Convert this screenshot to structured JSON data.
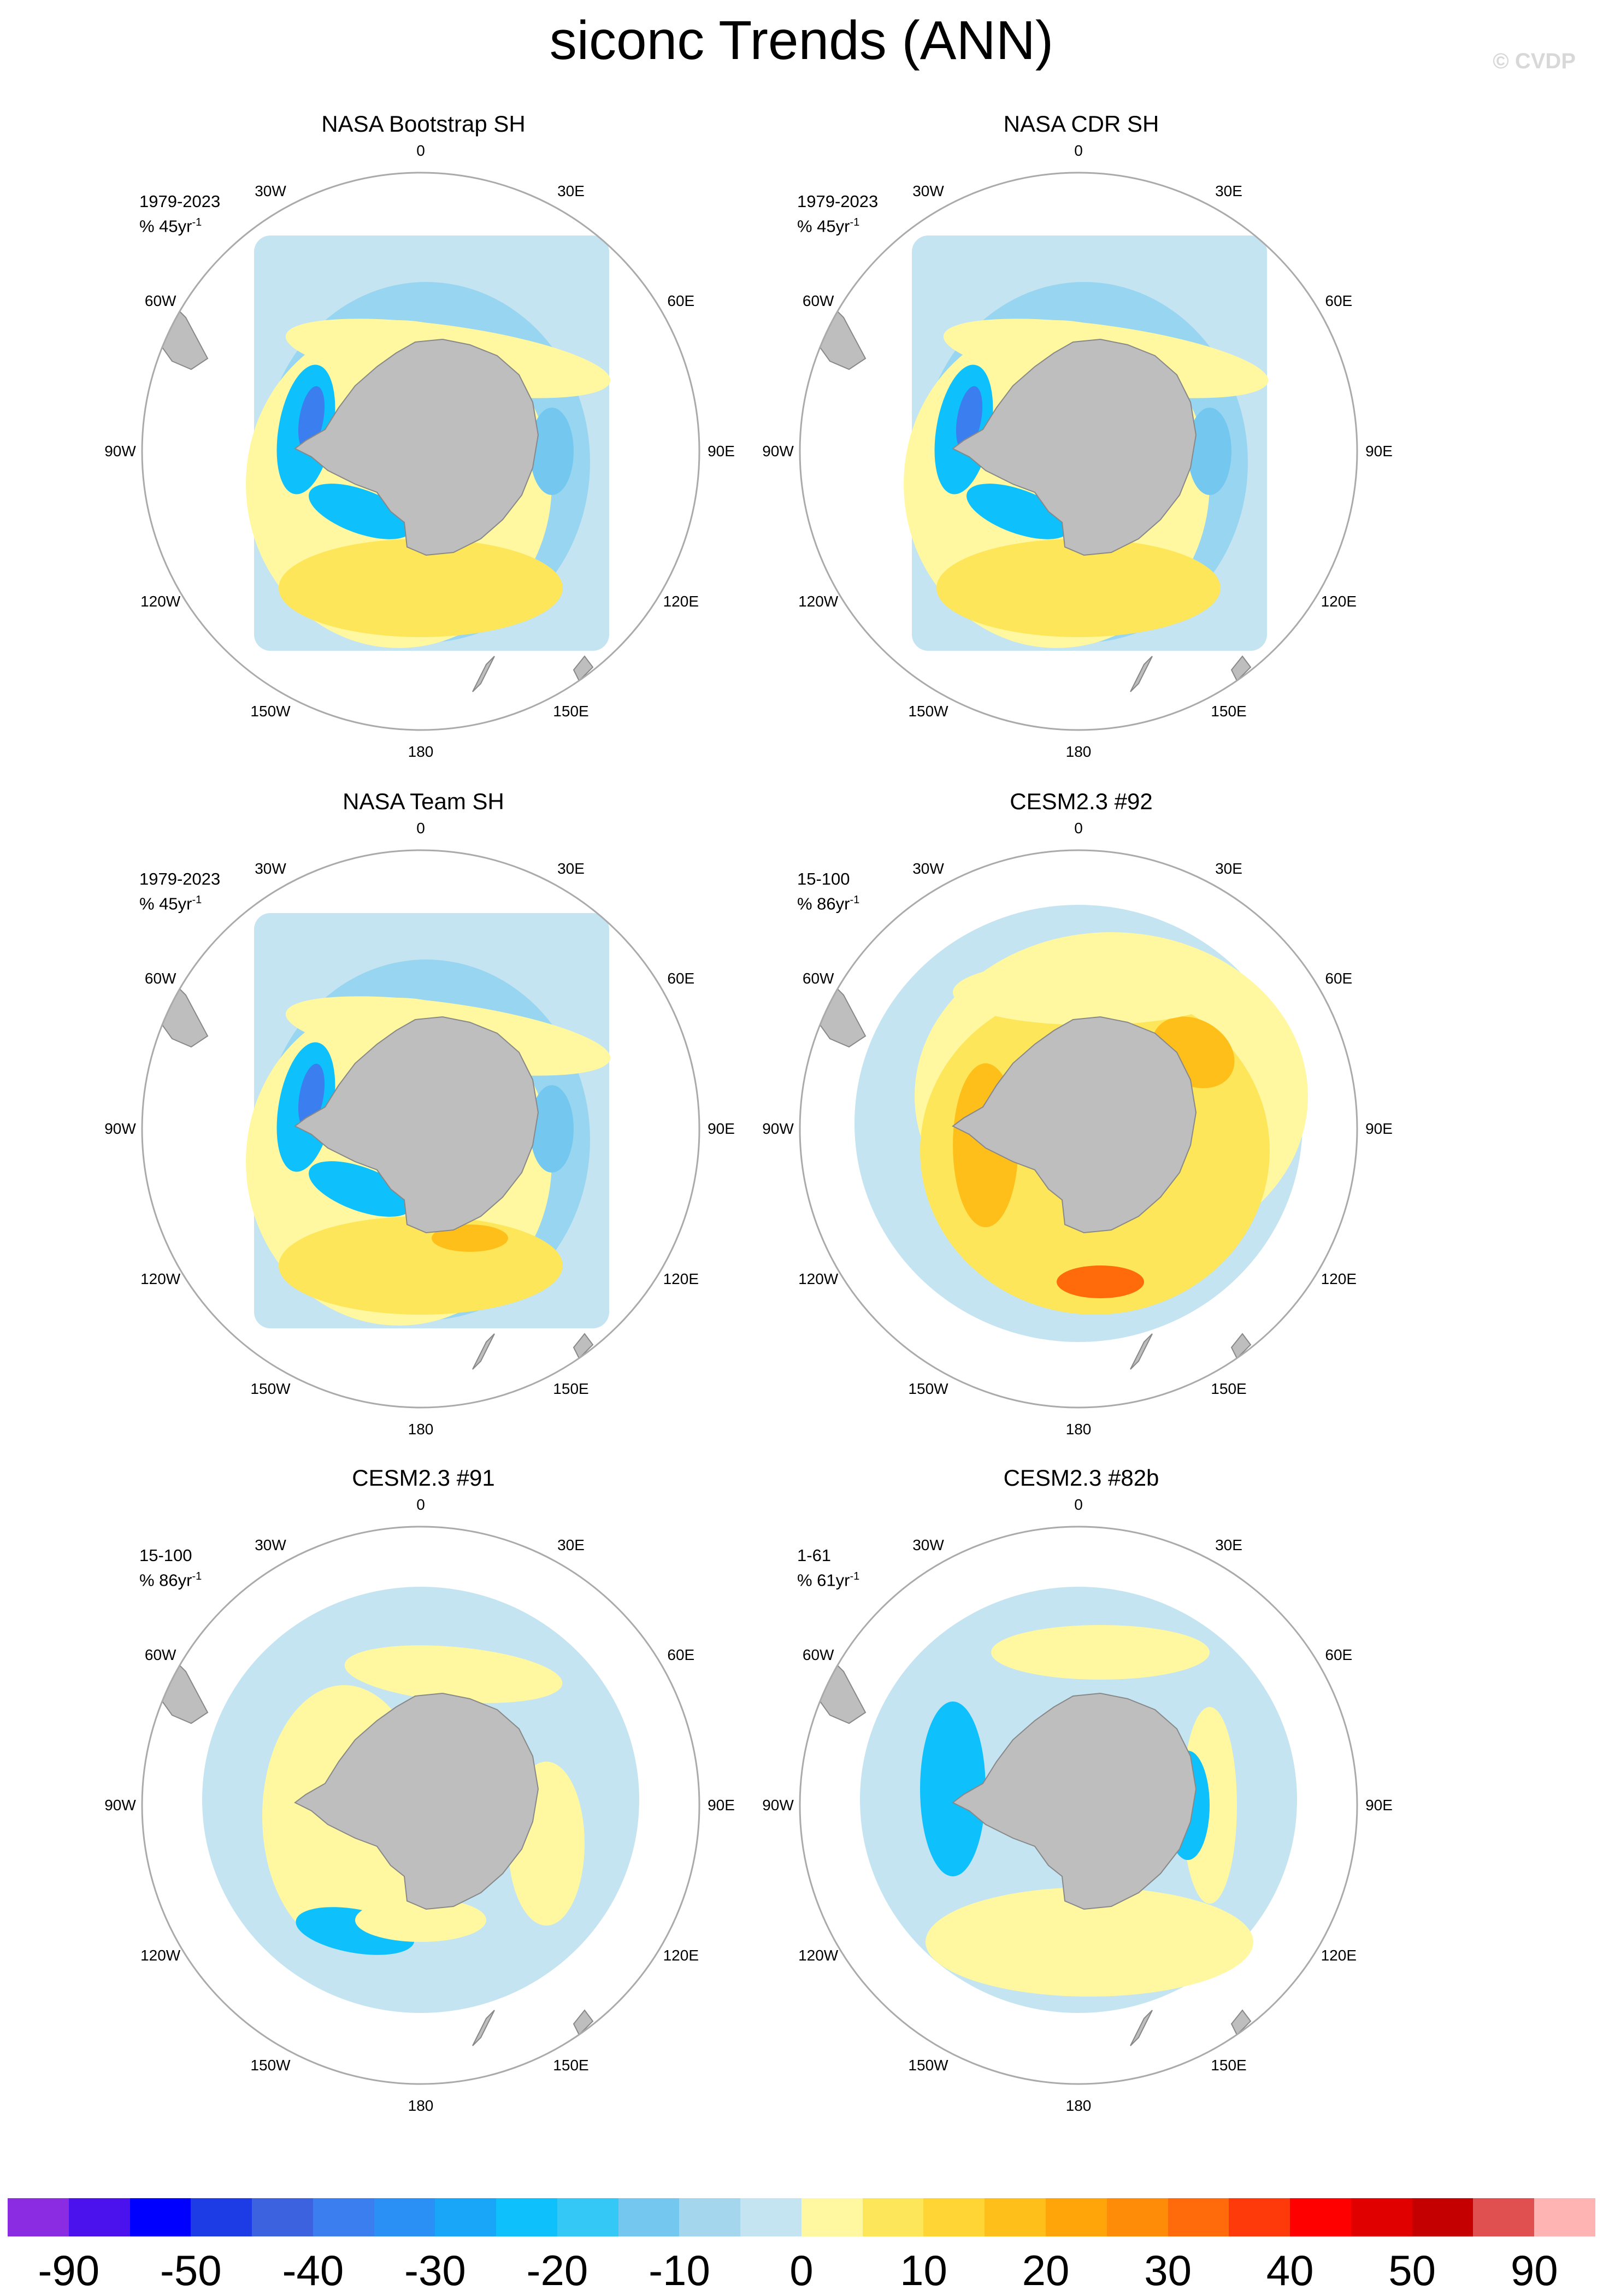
{
  "title": "siconc Trends (ANN)",
  "credit": "© CVDP",
  "longitude_labels": [
    "0",
    "30E",
    "60E",
    "90E",
    "120E",
    "150E",
    "180",
    "150W",
    "120W",
    "90W",
    "60W",
    "30W"
  ],
  "panels": [
    {
      "title": "NASA Bootstrap SH",
      "period": "1979-2023",
      "units": "% 45yr",
      "exponent": "-1",
      "field": "obs"
    },
    {
      "title": "NASA CDR SH",
      "period": "1979-2023",
      "units": "% 45yr",
      "exponent": "-1",
      "field": "obs"
    },
    {
      "title": "NASA Team SH",
      "period": "1979-2023",
      "units": "% 45yr",
      "exponent": "-1",
      "field": "obs"
    },
    {
      "title": "CESM2.3 #92",
      "period": "15-100",
      "units": "% 86yr",
      "exponent": "-1",
      "field": "model_positive"
    },
    {
      "title": "CESM2.3 #91",
      "period": "15-100",
      "units": "% 86yr",
      "exponent": "-1",
      "field": "model_mixed"
    },
    {
      "title": "CESM2.3 #82b",
      "period": "1-61",
      "units": "% 61yr",
      "exponent": "-1",
      "field": "model_negative"
    }
  ],
  "colorbar": {
    "colors": [
      "#8b2be2",
      "#4b12ee",
      "#0000ff",
      "#1e3ce6",
      "#3c62e0",
      "#3a7ef0",
      "#2a90f5",
      "#1aa6f8",
      "#0ec0fb",
      "#34c8f6",
      "#74c8f0",
      "#a4d6ee",
      "#c4e4f2",
      "#fff8a0",
      "#fde65a",
      "#fed534",
      "#ffbf1a",
      "#ffa50a",
      "#ff8c08",
      "#ff6a0a",
      "#ff3a0a",
      "#ff0000",
      "#e10000",
      "#c40000",
      "#e05050",
      "#ffb4b4"
    ],
    "labels": [
      "-90",
      "-50",
      "-40",
      "-30",
      "-20",
      "-10",
      "0",
      "10",
      "20",
      "30",
      "40",
      "50",
      "90"
    ]
  },
  "map_colors": {
    "land": "#bebebe",
    "land_edge": "#888888",
    "circle": "#aaaaaa"
  }
}
